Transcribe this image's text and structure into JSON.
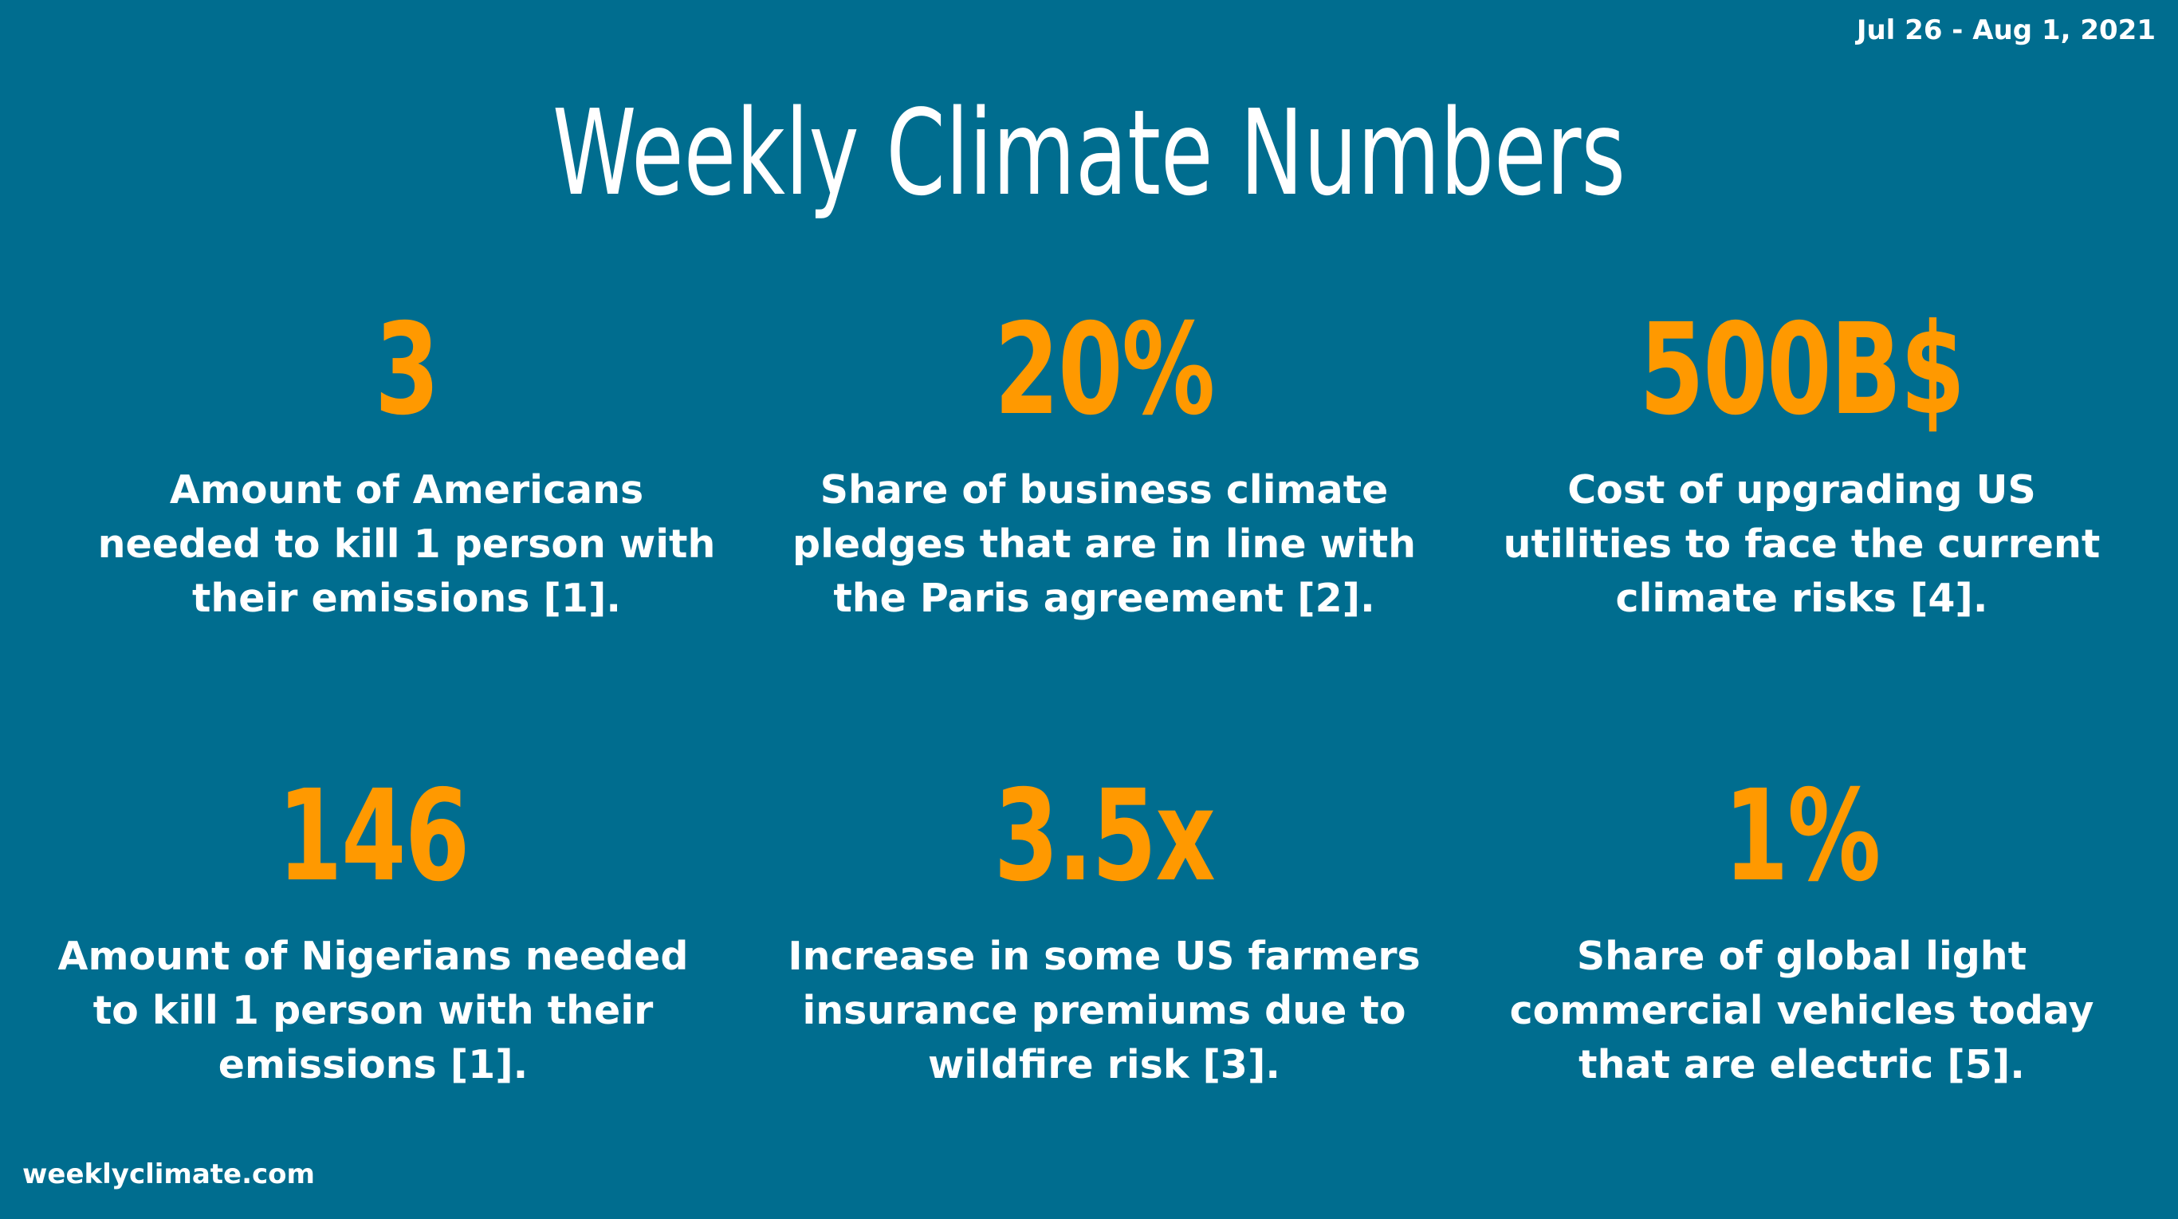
{
  "header": {
    "date_range": "Jul 26 - Aug 1, 2021",
    "title": "Weekly Climate Numbers"
  },
  "stats": [
    {
      "value": "3",
      "description": "Amount of Americans needed to kill 1 person with their emissions [1]."
    },
    {
      "value": "20%",
      "description": "Share of business climate pledges that are in line with the Paris agreement [2]."
    },
    {
      "value": "500B$",
      "description": "Cost of upgrading US utilities to face the current climate risks [4]."
    },
    {
      "value": "146",
      "description": "Amount of Nigerians needed to kill 1 person with their emissions [1]."
    },
    {
      "value": "3.5x",
      "description": "Increase in some US farmers insurance premiums due to wildfire risk [3]."
    },
    {
      "value": "1%",
      "description": "Share of global light commercial vehicles today that are electric [5]."
    }
  ],
  "footer": {
    "site": "weeklyclimate.com"
  },
  "colors": {
    "background": "#006d8f",
    "accent": "#ff9900",
    "text": "#ffffff"
  }
}
